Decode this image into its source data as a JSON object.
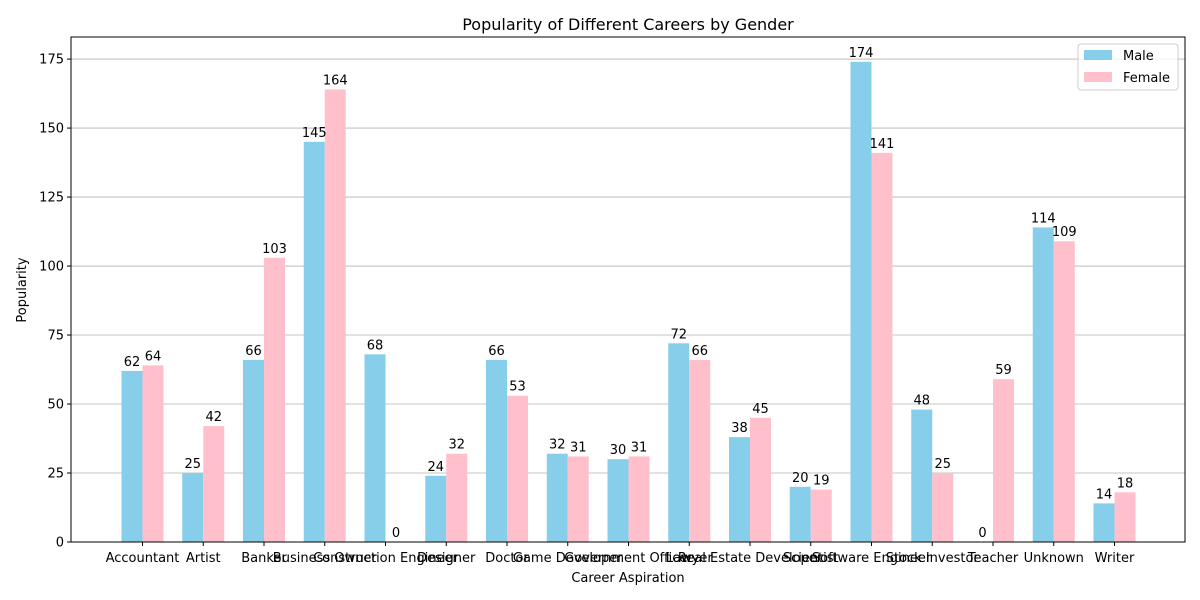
{
  "chart_data": {
    "type": "bar",
    "title": "Popularity of Different Careers by Gender",
    "xlabel": "Career Aspiration",
    "ylabel": "Popularity",
    "categories": [
      "Accountant",
      "Artist",
      "Banker",
      "Business Owner",
      "Construction Engineer",
      "Designer",
      "Doctor",
      "Game Developer",
      "Government Officer",
      "Lawyer",
      "Real Estate Developer",
      "Scientist",
      "Software Engineer",
      "Stock Investor",
      "Teacher",
      "Unknown",
      "Writer"
    ],
    "series": [
      {
        "name": "Male",
        "color": "#87ceeb",
        "values": [
          62,
          25,
          66,
          145,
          68,
          24,
          66,
          32,
          30,
          72,
          38,
          20,
          174,
          48,
          0,
          114,
          14
        ]
      },
      {
        "name": "Female",
        "color": "#ffc0cb",
        "values": [
          64,
          42,
          103,
          164,
          0,
          32,
          53,
          31,
          31,
          66,
          45,
          19,
          141,
          25,
          59,
          109,
          18
        ]
      }
    ],
    "ylim": [
      0,
      183
    ],
    "yticks": [
      0,
      25,
      50,
      75,
      100,
      125,
      150,
      175
    ],
    "grid": "y",
    "legend": "top-right"
  }
}
